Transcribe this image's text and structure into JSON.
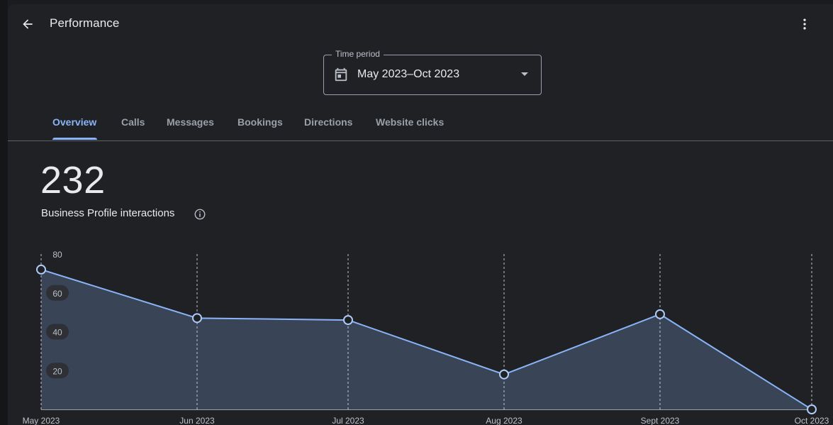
{
  "header": {
    "title": "Performance",
    "back_icon": "arrow-back-icon",
    "more_icon": "more-vert-icon"
  },
  "time_period": {
    "label": "Time period",
    "value": "May 2023–Oct 2023",
    "icon": "calendar-icon"
  },
  "tabs": [
    {
      "label": "Overview",
      "active": true
    },
    {
      "label": "Calls",
      "active": false
    },
    {
      "label": "Messages",
      "active": false
    },
    {
      "label": "Bookings",
      "active": false
    },
    {
      "label": "Directions",
      "active": false
    },
    {
      "label": "Website clicks",
      "active": false
    }
  ],
  "summary": {
    "total": "232",
    "label": "Business Profile interactions",
    "info_icon": "info-icon"
  },
  "colors": {
    "accent": "#8ab4f8",
    "area_fill": "#394457",
    "background": "#202124"
  },
  "chart_data": {
    "type": "area",
    "categories": [
      "May 2023",
      "Jun 2023",
      "Jul 2023",
      "Aug 2023",
      "Sept 2023",
      "Oct 2023"
    ],
    "values": [
      72,
      47,
      46,
      18,
      49,
      0
    ],
    "y_ticks": [
      20,
      40,
      60,
      80
    ],
    "ylim": [
      0,
      80
    ],
    "grid": "vertical dashed"
  }
}
